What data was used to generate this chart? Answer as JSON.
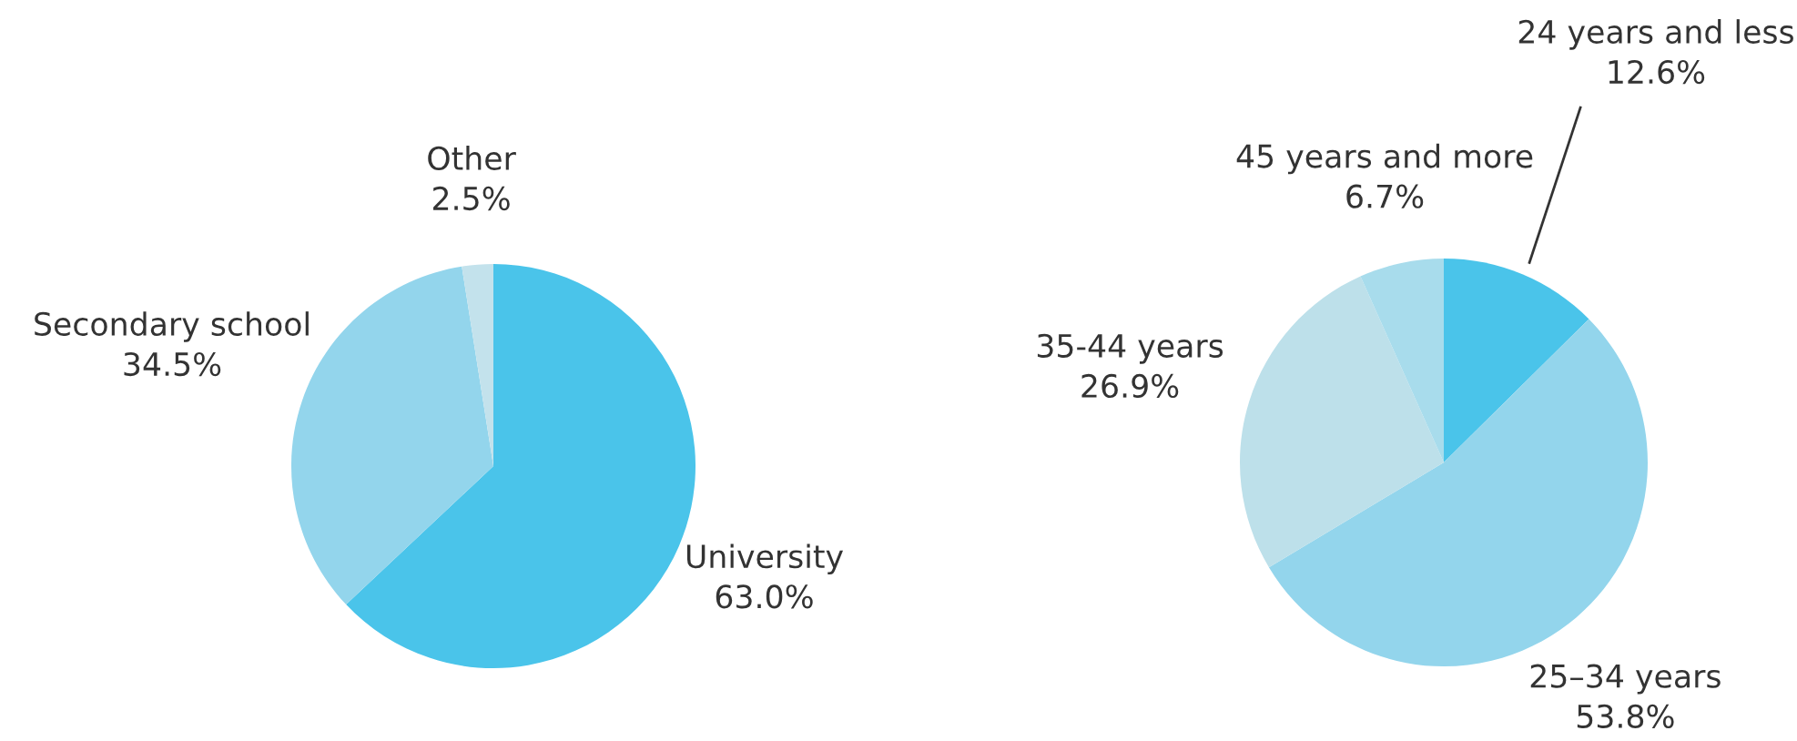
{
  "chart_data": [
    {
      "type": "pie",
      "categories": [
        "University",
        "Secondary school",
        "Other"
      ],
      "values": [
        63.0,
        34.5,
        2.5
      ],
      "colors": [
        "#4ac4ea",
        "#93d5ec",
        "#c3e2ec"
      ],
      "value_labels": [
        "63.0%",
        "34.5%",
        "2.5%"
      ]
    },
    {
      "type": "pie",
      "categories": [
        "24 years and less",
        "25–34 years",
        "35-44 years",
        "45 years and more"
      ],
      "values": [
        12.6,
        53.8,
        26.9,
        6.7
      ],
      "colors": [
        "#4ac4ea",
        "#93d5ec",
        "#bde0ea",
        "#a8dcec"
      ],
      "value_labels": [
        "12.6%",
        "53.8%",
        "26.9%",
        "6.7%"
      ]
    }
  ]
}
